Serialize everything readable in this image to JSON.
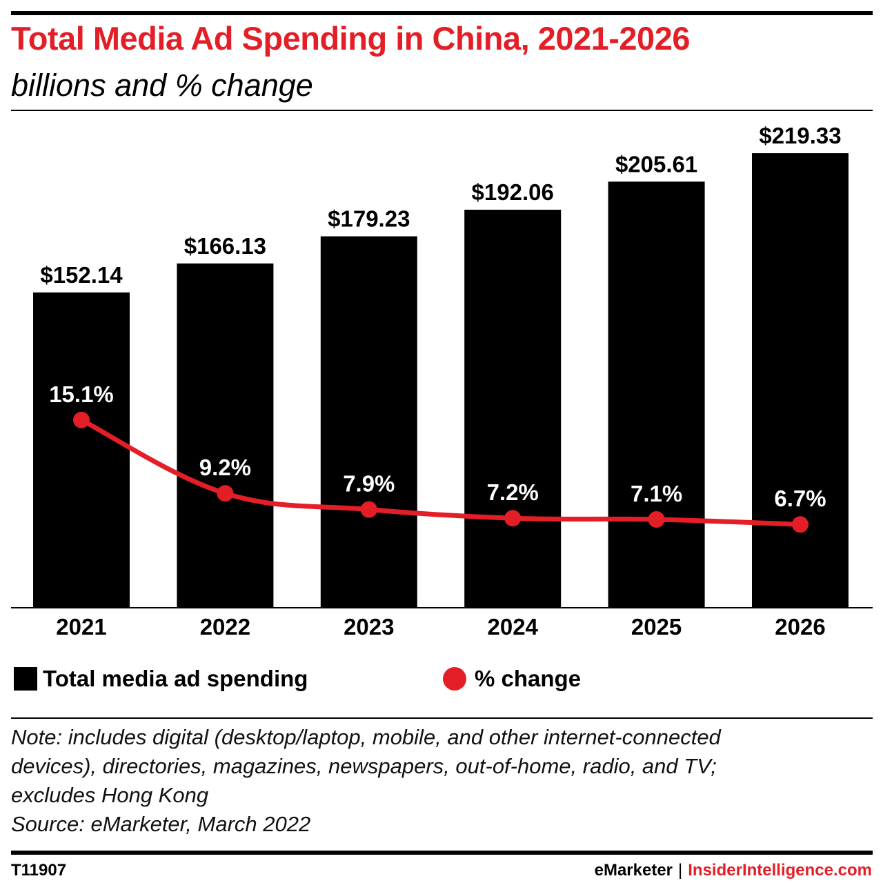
{
  "title": "Total Media Ad Spending in China, 2021-2026",
  "subtitle": "billions and % change",
  "chart_data": {
    "type": "bar",
    "categories": [
      "2021",
      "2022",
      "2023",
      "2024",
      "2025",
      "2026"
    ],
    "series": [
      {
        "name": "Total media ad spending",
        "values": [
          152.14,
          166.13,
          179.23,
          192.06,
          205.61,
          219.33
        ],
        "labels": [
          "$152.14",
          "$166.13",
          "$179.23",
          "$192.06",
          "$205.61",
          "$219.33"
        ],
        "color": "#000000",
        "kind": "bar"
      },
      {
        "name": "% change",
        "values": [
          15.1,
          9.2,
          7.9,
          7.2,
          7.1,
          6.7
        ],
        "labels": [
          "15.1%",
          "9.2%",
          "7.9%",
          "7.2%",
          "7.1%",
          "6.7%"
        ],
        "color": "#e41e26",
        "kind": "line"
      }
    ],
    "ylim": [
      0,
      240
    ],
    "y2lim": [
      0,
      40
    ],
    "grid": false,
    "legend": "bottom"
  },
  "legend": {
    "bar_label": "Total media ad spending",
    "line_label": "% change"
  },
  "note": {
    "line1": "Note: includes digital (desktop/laptop, mobile, and other internet-connected",
    "line2": "devices), directories, magazines, newspapers, out-of-home, radio, and TV;",
    "line3": "excludes Hong Kong",
    "source": "Source: eMarketer, March 2022"
  },
  "footer": {
    "id": "T11907",
    "brand1": "eMarketer",
    "separator": "|",
    "brand2": "InsiderIntelligence.com"
  },
  "colors": {
    "accent": "#e41e26",
    "bar": "#000000"
  }
}
